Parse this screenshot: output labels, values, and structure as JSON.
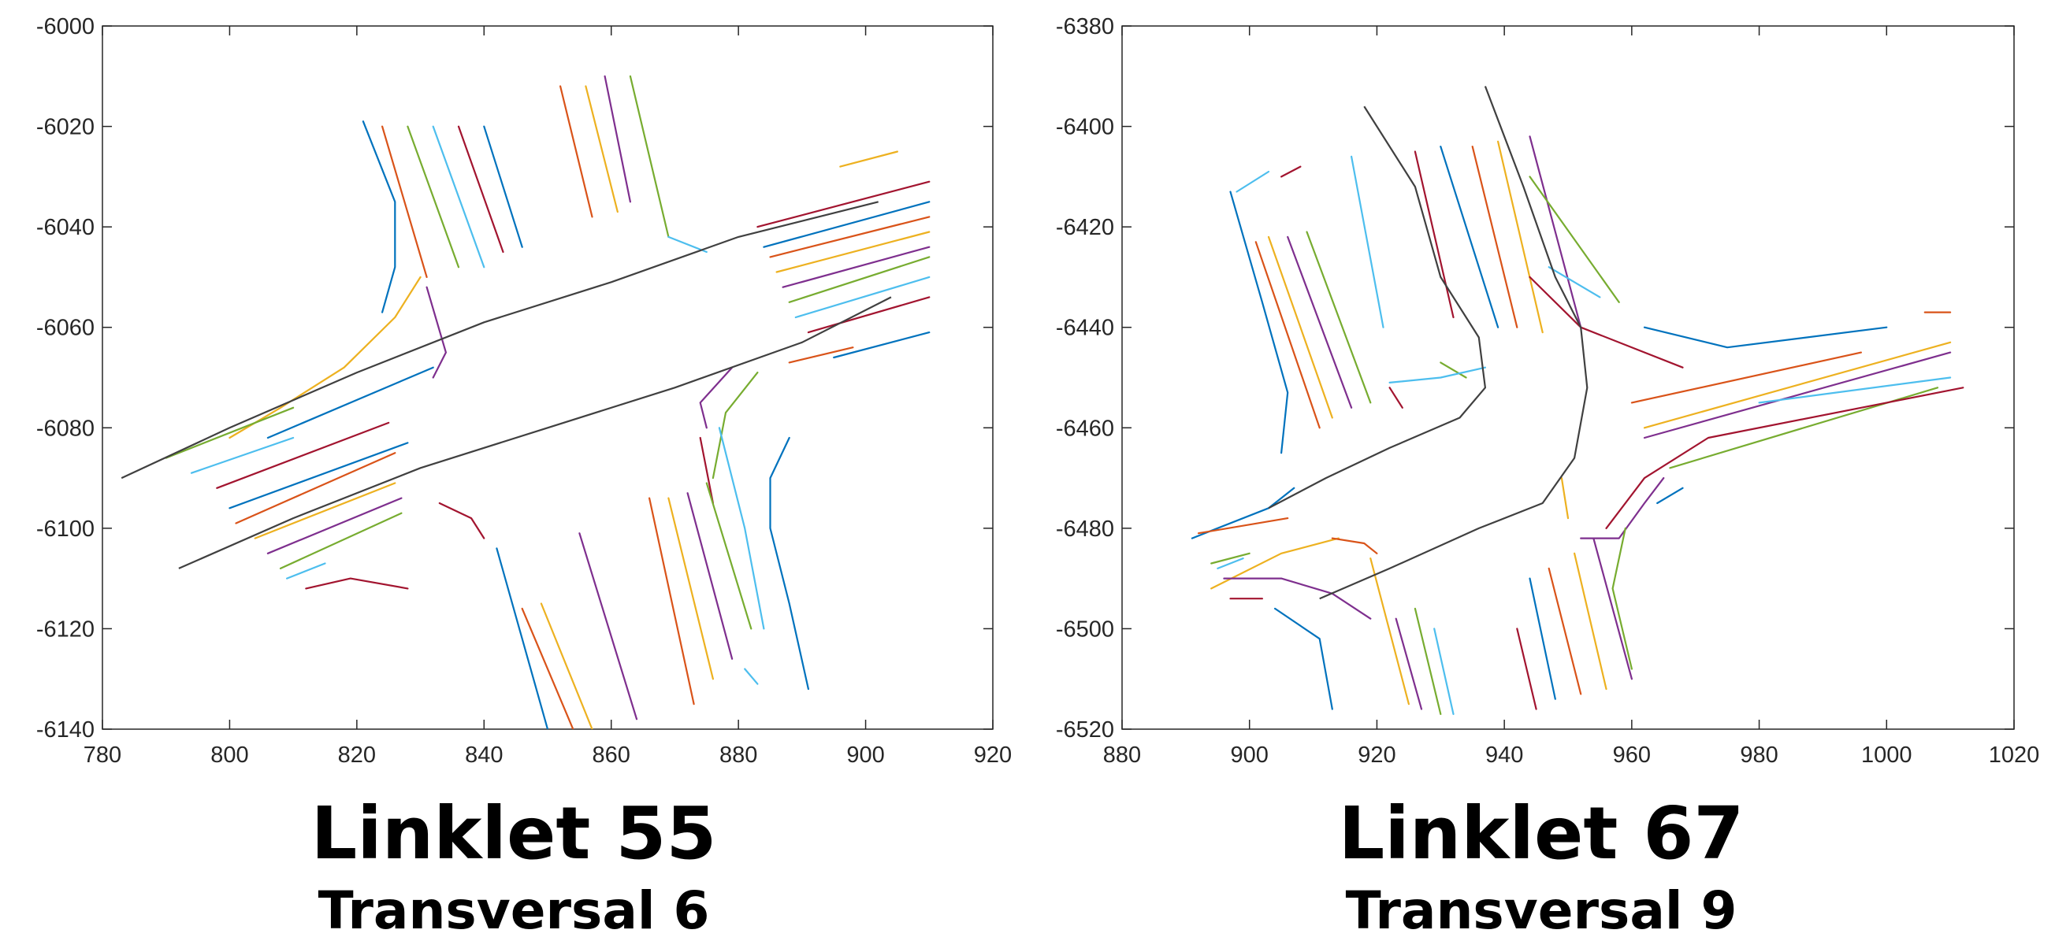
{
  "colors": {
    "palette": [
      "#0072BD",
      "#D95319",
      "#EDB120",
      "#7E2F8E",
      "#77AC30",
      "#4DBEEE",
      "#A2142F"
    ],
    "trajectory": "#404040",
    "axes": "#262626"
  },
  "chart_data": [
    {
      "type": "line",
      "caption": {
        "title": "Linklet 55",
        "subtitle": "Transversal 6"
      },
      "xlim": [
        780,
        920
      ],
      "ylim": [
        -6140,
        -6000
      ],
      "xticks": [
        780,
        800,
        820,
        840,
        860,
        880,
        900,
        920
      ],
      "yticks": [
        -6000,
        -6020,
        -6040,
        -6060,
        -6080,
        -6100,
        -6120,
        -6140
      ],
      "grid": false,
      "trajectories": [
        [
          [
            783,
            -6090
          ],
          [
            800,
            -6080
          ],
          [
            820,
            -6069
          ],
          [
            840,
            -6059
          ],
          [
            860,
            -6051
          ],
          [
            880,
            -6042
          ],
          [
            902,
            -6035
          ]
        ],
        [
          [
            792,
            -6108
          ],
          [
            810,
            -6098
          ],
          [
            830,
            -6088
          ],
          [
            850,
            -6080
          ],
          [
            870,
            -6072
          ],
          [
            890,
            -6063
          ],
          [
            904,
            -6054
          ]
        ]
      ],
      "segments": [
        [
          [
            821,
            -6019
          ],
          [
            826,
            -6035
          ],
          [
            826,
            -6048
          ],
          [
            824,
            -6057
          ]
        ],
        [
          [
            824,
            -6020
          ],
          [
            831,
            -6050
          ]
        ],
        [
          [
            830,
            -6050
          ],
          [
            826,
            -6058
          ],
          [
            818,
            -6068
          ],
          [
            808,
            -6076
          ],
          [
            800,
            -6082
          ]
        ],
        [
          [
            831,
            -6052
          ],
          [
            834,
            -6065
          ],
          [
            832,
            -6070
          ]
        ],
        [
          [
            828,
            -6020
          ],
          [
            836,
            -6048
          ]
        ],
        [
          [
            832,
            -6020
          ],
          [
            840,
            -6048
          ]
        ],
        [
          [
            836,
            -6020
          ],
          [
            843,
            -6045
          ]
        ],
        [
          [
            840,
            -6020
          ],
          [
            846,
            -6044
          ]
        ],
        [
          [
            852,
            -6012
          ],
          [
            857,
            -6038
          ]
        ],
        [
          [
            856,
            -6012
          ],
          [
            861,
            -6037
          ]
        ],
        [
          [
            859,
            -6010
          ],
          [
            863,
            -6035
          ]
        ],
        [
          [
            863,
            -6010
          ],
          [
            869,
            -6042
          ]
        ],
        [
          [
            869,
            -6042
          ],
          [
            875,
            -6045
          ]
        ],
        [
          [
            883,
            -6040
          ],
          [
            910,
            -6031
          ]
        ],
        [
          [
            884,
            -6044
          ],
          [
            910,
            -6035
          ]
        ],
        [
          [
            885,
            -6046
          ],
          [
            910,
            -6038
          ]
        ],
        [
          [
            886,
            -6049
          ],
          [
            910,
            -6041
          ]
        ],
        [
          [
            887,
            -6052
          ],
          [
            910,
            -6044
          ]
        ],
        [
          [
            888,
            -6055
          ],
          [
            910,
            -6046
          ]
        ],
        [
          [
            889,
            -6058
          ],
          [
            910,
            -6050
          ]
        ],
        [
          [
            891,
            -6061
          ],
          [
            910,
            -6054
          ]
        ],
        [
          [
            895,
            -6066
          ],
          [
            910,
            -6061
          ]
        ],
        [
          [
            888,
            -6067
          ],
          [
            898,
            -6064
          ]
        ],
        [
          [
            896,
            -6028
          ],
          [
            905,
            -6025
          ]
        ],
        [
          [
            879,
            -6068
          ],
          [
            874,
            -6075
          ],
          [
            875,
            -6080
          ]
        ],
        [
          [
            883,
            -6069
          ],
          [
            878,
            -6077
          ],
          [
            876,
            -6090
          ]
        ],
        [
          [
            877,
            -6080
          ],
          [
            881,
            -6100
          ],
          [
            884,
            -6120
          ]
        ],
        [
          [
            874,
            -6082
          ],
          [
            876,
            -6095
          ]
        ],
        [
          [
            888,
            -6082
          ],
          [
            885,
            -6090
          ],
          [
            885,
            -6100
          ],
          [
            888,
            -6115
          ],
          [
            891,
            -6132
          ]
        ],
        [
          [
            866,
            -6094
          ],
          [
            873,
            -6135
          ]
        ],
        [
          [
            869,
            -6094
          ],
          [
            876,
            -6130
          ]
        ],
        [
          [
            872,
            -6093
          ],
          [
            879,
            -6126
          ]
        ],
        [
          [
            875,
            -6091
          ],
          [
            882,
            -6120
          ]
        ],
        [
          [
            881,
            -6128
          ],
          [
            883,
            -6131
          ]
        ],
        [
          [
            833,
            -6095
          ],
          [
            838,
            -6098
          ],
          [
            840,
            -6102
          ]
        ],
        [
          [
            842,
            -6104
          ],
          [
            850,
            -6140
          ]
        ],
        [
          [
            846,
            -6116
          ],
          [
            854,
            -6140
          ]
        ],
        [
          [
            849,
            -6115
          ],
          [
            857,
            -6140
          ]
        ],
        [
          [
            855,
            -6101
          ],
          [
            864,
            -6138
          ]
        ],
        [
          [
            790,
            -6086
          ],
          [
            810,
            -6076
          ]
        ],
        [
          [
            794,
            -6089
          ],
          [
            810,
            -6082
          ]
        ],
        [
          [
            798,
            -6092
          ],
          [
            825,
            -6079
          ]
        ],
        [
          [
            800,
            -6096
          ],
          [
            828,
            -6083
          ]
        ],
        [
          [
            801,
            -6099
          ],
          [
            826,
            -6085
          ]
        ],
        [
          [
            804,
            -6102
          ],
          [
            826,
            -6091
          ]
        ],
        [
          [
            806,
            -6105
          ],
          [
            827,
            -6094
          ]
        ],
        [
          [
            808,
            -6108
          ],
          [
            827,
            -6097
          ]
        ],
        [
          [
            809,
            -6110
          ],
          [
            815,
            -6107
          ]
        ],
        [
          [
            812,
            -6112
          ],
          [
            819,
            -6110
          ],
          [
            828,
            -6112
          ]
        ],
        [
          [
            806,
            -6082
          ],
          [
            832,
            -6068
          ]
        ]
      ]
    },
    {
      "type": "line",
      "caption": {
        "title": "Linklet 67",
        "subtitle": "Transversal 9"
      },
      "xlim": [
        880,
        1020
      ],
      "ylim": [
        -6520,
        -6380
      ],
      "xticks": [
        880,
        900,
        920,
        940,
        960,
        980,
        1000,
        1020
      ],
      "yticks": [
        -6380,
        -6400,
        -6420,
        -6440,
        -6460,
        -6480,
        -6500,
        -6520
      ],
      "grid": false,
      "trajectories": [
        [
          [
            918,
            -6396
          ],
          [
            926,
            -6412
          ],
          [
            930,
            -6430
          ],
          [
            936,
            -6442
          ],
          [
            937,
            -6452
          ],
          [
            933,
            -6458
          ],
          [
            922,
            -6464
          ],
          [
            912,
            -6470
          ],
          [
            903,
            -6476
          ]
        ],
        [
          [
            937,
            -6392
          ],
          [
            943,
            -6412
          ],
          [
            948,
            -6430
          ],
          [
            952,
            -6440
          ],
          [
            953,
            -6452
          ],
          [
            951,
            -6466
          ],
          [
            946,
            -6475
          ],
          [
            936,
            -6480
          ],
          [
            922,
            -6488
          ],
          [
            911,
            -6494
          ]
        ]
      ],
      "segments": [
        [
          [
            897,
            -6413
          ],
          [
            902,
            -6435
          ],
          [
            906,
            -6453
          ],
          [
            905,
            -6465
          ]
        ],
        [
          [
            901,
            -6423
          ],
          [
            911,
            -6460
          ]
        ],
        [
          [
            903,
            -6422
          ],
          [
            913,
            -6458
          ]
        ],
        [
          [
            906,
            -6422
          ],
          [
            916,
            -6456
          ]
        ],
        [
          [
            909,
            -6421
          ],
          [
            919,
            -6455
          ]
        ],
        [
          [
            916,
            -6406
          ],
          [
            921,
            -6440
          ]
        ],
        [
          [
            926,
            -6405
          ],
          [
            932,
            -6438
          ]
        ],
        [
          [
            930,
            -6404
          ],
          [
            939,
            -6440
          ]
        ],
        [
          [
            935,
            -6404
          ],
          [
            942,
            -6440
          ]
        ],
        [
          [
            939,
            -6403
          ],
          [
            946,
            -6441
          ]
        ],
        [
          [
            944,
            -6402
          ],
          [
            952,
            -6440
          ]
        ],
        [
          [
            944,
            -6410
          ],
          [
            958,
            -6435
          ]
        ],
        [
          [
            947,
            -6428
          ],
          [
            955,
            -6434
          ]
        ],
        [
          [
            944,
            -6430
          ],
          [
            952,
            -6440
          ],
          [
            968,
            -6448
          ]
        ],
        [
          [
            962,
            -6440
          ],
          [
            975,
            -6444
          ],
          [
            1000,
            -6440
          ]
        ],
        [
          [
            960,
            -6455
          ],
          [
            996,
            -6445
          ]
        ],
        [
          [
            962,
            -6460
          ],
          [
            1010,
            -6443
          ]
        ],
        [
          [
            962,
            -6462
          ],
          [
            1010,
            -6445
          ]
        ],
        [
          [
            966,
            -6468
          ],
          [
            1008,
            -6452
          ]
        ],
        [
          [
            980,
            -6455
          ],
          [
            1010,
            -6450
          ]
        ],
        [
          [
            956,
            -6480
          ],
          [
            962,
            -6470
          ],
          [
            972,
            -6462
          ],
          [
            1000,
            -6455
          ],
          [
            1012,
            -6452
          ]
        ],
        [
          [
            964,
            -6475
          ],
          [
            968,
            -6472
          ]
        ],
        [
          [
            1006,
            -6437
          ],
          [
            1010,
            -6437
          ]
        ],
        [
          [
            949,
            -6470
          ],
          [
            950,
            -6478
          ]
        ],
        [
          [
            952,
            -6482
          ],
          [
            958,
            -6482
          ],
          [
            962,
            -6475
          ],
          [
            965,
            -6470
          ]
        ],
        [
          [
            930,
            -6447
          ],
          [
            934,
            -6450
          ]
        ],
        [
          [
            922,
            -6451
          ],
          [
            930,
            -6450
          ],
          [
            937,
            -6448
          ]
        ],
        [
          [
            922,
            -6452
          ],
          [
            924,
            -6456
          ]
        ],
        [
          [
            891,
            -6482
          ],
          [
            903,
            -6476
          ],
          [
            907,
            -6472
          ]
        ],
        [
          [
            892,
            -6481
          ],
          [
            906,
            -6478
          ]
        ],
        [
          [
            894,
            -6492
          ],
          [
            905,
            -6485
          ],
          [
            914,
            -6482
          ]
        ],
        [
          [
            896,
            -6490
          ],
          [
            905,
            -6490
          ],
          [
            913,
            -6493
          ],
          [
            919,
            -6498
          ]
        ],
        [
          [
            894,
            -6487
          ],
          [
            900,
            -6485
          ]
        ],
        [
          [
            895,
            -6488
          ],
          [
            899,
            -6486
          ]
        ],
        [
          [
            897,
            -6494
          ],
          [
            902,
            -6494
          ]
        ],
        [
          [
            904,
            -6496
          ],
          [
            911,
            -6502
          ],
          [
            913,
            -6516
          ]
        ],
        [
          [
            913,
            -6482
          ],
          [
            918,
            -6483
          ],
          [
            920,
            -6485
          ]
        ],
        [
          [
            919,
            -6486
          ],
          [
            925,
            -6515
          ]
        ],
        [
          [
            923,
            -6498
          ],
          [
            927,
            -6516
          ]
        ],
        [
          [
            926,
            -6496
          ],
          [
            930,
            -6517
          ]
        ],
        [
          [
            929,
            -6500
          ],
          [
            932,
            -6517
          ]
        ],
        [
          [
            942,
            -6500
          ],
          [
            945,
            -6516
          ]
        ],
        [
          [
            944,
            -6490
          ],
          [
            948,
            -6514
          ]
        ],
        [
          [
            947,
            -6488
          ],
          [
            952,
            -6513
          ]
        ],
        [
          [
            951,
            -6485
          ],
          [
            956,
            -6512
          ]
        ],
        [
          [
            954,
            -6482
          ],
          [
            960,
            -6510
          ]
        ],
        [
          [
            959,
            -6480
          ],
          [
            957,
            -6492
          ],
          [
            960,
            -6508
          ]
        ],
        [
          [
            898,
            -6413
          ],
          [
            903,
            -6409
          ]
        ],
        [
          [
            905,
            -6410
          ],
          [
            908,
            -6408
          ]
        ]
      ]
    }
  ]
}
